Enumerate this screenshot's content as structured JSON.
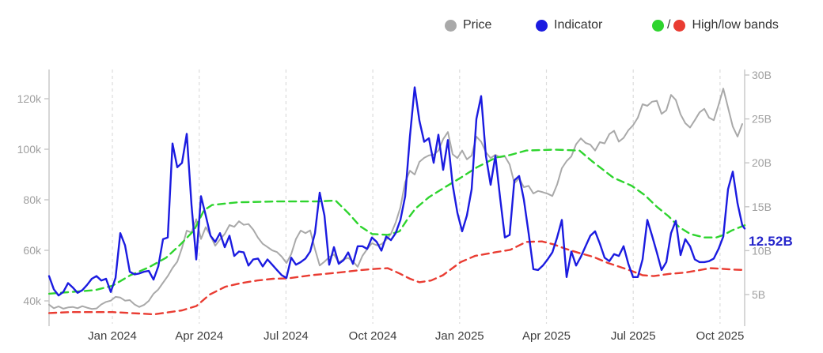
{
  "legend": {
    "price_label": "Price",
    "indicator_label": "Indicator",
    "bands_label": "High/low bands",
    "bands_separator": "/"
  },
  "colors": {
    "price": "#a9a9a9",
    "indicator": "#1b1be0",
    "band_high": "#2ed42e",
    "band_low": "#e93c32",
    "annotation": "#2626cb",
    "grid": "#dcdcdc",
    "axis_line": "#c6c6c6",
    "y_tick_label": "#9f9f9f",
    "x_tick_label": "#3d3d3d"
  },
  "annotation": {
    "text": "12.52B",
    "value": 12.52,
    "x": 2025.821
  },
  "chart_data": {
    "type": "line",
    "title": "",
    "x_axis": {
      "ticks": [
        2024.0,
        2024.25,
        2024.5,
        2024.75,
        2025.0,
        2025.25,
        2025.5,
        2025.75
      ],
      "labels": [
        "Jan 2024",
        "Apr 2024",
        "Jul 2024",
        "Oct 2024",
        "Jan 2025",
        "Apr 2025",
        "Jul 2025",
        "Oct 2025"
      ],
      "range": [
        2023.818,
        2025.825
      ],
      "grid": true
    },
    "y_left": {
      "ticks": [
        40,
        60,
        80,
        100,
        120
      ],
      "labels": [
        "40k",
        "60k",
        "80k",
        "100k",
        "120k"
      ],
      "unit": "thousand (price)",
      "range": [
        31.6,
        131.6
      ]
    },
    "y_right": {
      "ticks": [
        5,
        10,
        15,
        20,
        25,
        30
      ],
      "labels": [
        "5B",
        "10B",
        "15B",
        "20B",
        "25B",
        "30B"
      ],
      "unit": "billions",
      "range": [
        1.85,
        30.6
      ]
    },
    "series": [
      {
        "name": "Price",
        "axis": "left",
        "style": "solid",
        "color_key": "price",
        "x_start": 2023.8177,
        "x_step": 0.013674,
        "values": [
          38.5,
          37.1,
          37.8,
          36.9,
          37.4,
          37.6,
          37.1,
          37.9,
          37.3,
          36.8,
          37.0,
          38.6,
          39.6,
          40.1,
          41.6,
          41.3,
          40.1,
          40.3,
          38.6,
          37.6,
          38.4,
          40.0,
          42.8,
          44.5,
          47.2,
          49.8,
          53.0,
          55.5,
          61.0,
          67.8,
          67.0,
          72.3,
          64.5,
          69.2,
          65.8,
          61.8,
          64.3,
          66.5,
          70.0,
          69.3,
          71.5,
          70.1,
          70.4,
          68.2,
          65.0,
          62.6,
          61.3,
          60.0,
          59.3,
          57.5,
          55.0,
          58.5,
          64.5,
          67.8,
          66.8,
          67.9,
          60.5,
          54.0,
          55.5,
          57.3,
          58.4,
          55.2,
          56.4,
          57.0,
          55.6,
          53.5,
          57.8,
          60.5,
          62.8,
          62.0,
          62.4,
          64.2,
          66.5,
          71.0,
          77.0,
          87.0,
          91.5,
          90.0,
          95.0,
          96.6,
          97.6,
          97.8,
          99.5,
          104.0,
          106.8,
          98.0,
          96.5,
          99.5,
          96.0,
          97.5,
          105.0,
          103.0,
          98.8,
          96.5,
          97.8,
          96.8,
          97.2,
          94.0,
          86.6,
          88.5,
          85.0,
          85.5,
          82.5,
          83.5,
          83.0,
          82.4,
          81.5,
          86.0,
          92.5,
          95.3,
          97.2,
          102.0,
          104.3,
          102.5,
          101.8,
          99.5,
          102.8,
          102.3,
          106.0,
          107.3,
          103.0,
          104.5,
          107.5,
          109.5,
          112.5,
          117.8,
          117.2,
          118.8,
          119.2,
          114.0,
          115.4,
          121.5,
          119.5,
          113.8,
          110.3,
          108.6,
          111.5,
          114.6,
          116.0,
          112.5,
          111.5,
          117.5,
          124.0,
          116.5,
          109.0,
          105.0,
          110.0
        ]
      },
      {
        "name": "Indicator",
        "axis": "right",
        "style": "solid",
        "color_key": "indicator",
        "x_start": 2023.8177,
        "x_step": 0.013674,
        "last_x": 2025.8209,
        "last_value": 12.52,
        "values": [
          7.1,
          5.6,
          4.9,
          5.3,
          6.3,
          5.8,
          5.2,
          5.5,
          6.1,
          6.8,
          7.1,
          6.6,
          6.8,
          5.3,
          6.9,
          12.0,
          10.6,
          7.6,
          7.3,
          7.4,
          7.6,
          7.7,
          6.7,
          8.2,
          11.3,
          11.5,
          22.2,
          19.5,
          20.0,
          23.3,
          15.2,
          9.0,
          16.2,
          14.0,
          11.7,
          11.0,
          12.0,
          10.4,
          11.7,
          9.4,
          9.9,
          9.8,
          8.3,
          9.0,
          9.1,
          8.2,
          9.0,
          8.4,
          7.8,
          7.2,
          6.9,
          9.2,
          8.4,
          8.7,
          9.1,
          9.9,
          12.0,
          16.6,
          14.0,
          8.4,
          10.4,
          8.5,
          8.9,
          9.8,
          8.5,
          10.5,
          10.5,
          10.2,
          11.5,
          11.0,
          10.0,
          11.6,
          11.2,
          12.0,
          13.5,
          16.2,
          23.0,
          28.6,
          24.8,
          22.4,
          22.8,
          20.0,
          23.2,
          19.2,
          22.6,
          17.5,
          14.3,
          12.2,
          14.0,
          17.0,
          25.0,
          27.6,
          20.8,
          17.5,
          20.8,
          16.0,
          11.5,
          11.8,
          18.0,
          18.5,
          15.8,
          12.0,
          7.9,
          7.8,
          8.3,
          9.0,
          9.8,
          11.5,
          13.5,
          7.0,
          9.9,
          8.3,
          9.3,
          10.5,
          11.7,
          12.2,
          10.8,
          9.2,
          8.8,
          9.6,
          9.4,
          10.5,
          8.5,
          7.0,
          7.0,
          9.0,
          13.5,
          11.7,
          9.8,
          7.8,
          8.7,
          12.0,
          13.4,
          9.5,
          11.3,
          10.5,
          9.0,
          8.7,
          8.7,
          8.8,
          9.1,
          10.2,
          11.6,
          17.0,
          19.0,
          15.4,
          12.9
        ]
      },
      {
        "name": "High band",
        "axis": "right",
        "style": "dashed",
        "color_key": "band_high",
        "points": [
          [
            2023.818,
            5.1
          ],
          [
            2023.881,
            5.3
          ],
          [
            2023.95,
            5.5
          ],
          [
            2024.0,
            6.0
          ],
          [
            2024.052,
            7.2
          ],
          [
            2024.105,
            8.1
          ],
          [
            2024.155,
            9.2
          ],
          [
            2024.196,
            10.7
          ],
          [
            2024.235,
            12.3
          ],
          [
            2024.264,
            14.6
          ],
          [
            2024.287,
            15.2
          ],
          [
            2024.36,
            15.5
          ],
          [
            2024.474,
            15.6
          ],
          [
            2024.588,
            15.6
          ],
          [
            2024.643,
            15.7
          ],
          [
            2024.679,
            14.3
          ],
          [
            2024.713,
            12.8
          ],
          [
            2024.748,
            11.9
          ],
          [
            2024.793,
            11.8
          ],
          [
            2024.827,
            12.2
          ],
          [
            2024.85,
            13.6
          ],
          [
            2024.873,
            14.8
          ],
          [
            2024.912,
            16.1
          ],
          [
            2024.957,
            17.2
          ],
          [
            2025.003,
            18.3
          ],
          [
            2025.05,
            19.5
          ],
          [
            2025.105,
            20.6
          ],
          [
            2025.146,
            20.9
          ],
          [
            2025.192,
            21.4
          ],
          [
            2025.272,
            21.5
          ],
          [
            2025.345,
            21.4
          ],
          [
            2025.381,
            20.2
          ],
          [
            2025.443,
            18.3
          ],
          [
            2025.495,
            17.4
          ],
          [
            2025.534,
            16.3
          ],
          [
            2025.568,
            15.0
          ],
          [
            2025.602,
            13.9
          ],
          [
            2025.632,
            12.7
          ],
          [
            2025.664,
            11.9
          ],
          [
            2025.705,
            11.5
          ],
          [
            2025.739,
            11.5
          ],
          [
            2025.761,
            11.8
          ],
          [
            2025.784,
            12.3
          ],
          [
            2025.821,
            12.9
          ]
        ]
      },
      {
        "name": "Low band",
        "axis": "right",
        "style": "dashed",
        "color_key": "band_low",
        "points": [
          [
            2023.818,
            2.9
          ],
          [
            2023.881,
            3.0
          ],
          [
            2023.95,
            3.0
          ],
          [
            2024.0,
            3.0
          ],
          [
            2024.052,
            2.9
          ],
          [
            2024.121,
            2.75
          ],
          [
            2024.166,
            3.0
          ],
          [
            2024.201,
            3.2
          ],
          [
            2024.242,
            3.7
          ],
          [
            2024.28,
            5.0
          ],
          [
            2024.326,
            5.9
          ],
          [
            2024.371,
            6.3
          ],
          [
            2024.417,
            6.6
          ],
          [
            2024.463,
            6.8
          ],
          [
            2024.508,
            6.85
          ],
          [
            2024.572,
            7.2
          ],
          [
            2024.65,
            7.5
          ],
          [
            2024.718,
            7.8
          ],
          [
            2024.766,
            7.95
          ],
          [
            2024.793,
            8.0
          ],
          [
            2024.827,
            7.4
          ],
          [
            2024.857,
            6.8
          ],
          [
            2024.884,
            6.4
          ],
          [
            2024.918,
            6.6
          ],
          [
            2024.952,
            7.2
          ],
          [
            2025.003,
            8.7
          ],
          [
            2025.044,
            9.4
          ],
          [
            2025.101,
            9.8
          ],
          [
            2025.146,
            10.1
          ],
          [
            2025.192,
            11.0
          ],
          [
            2025.237,
            11.05
          ],
          [
            2025.272,
            10.7
          ],
          [
            2025.306,
            10.2
          ],
          [
            2025.347,
            9.7
          ],
          [
            2025.385,
            9.3
          ],
          [
            2025.427,
            8.6
          ],
          [
            2025.465,
            8.1
          ],
          [
            2025.495,
            7.7
          ],
          [
            2025.527,
            7.2
          ],
          [
            2025.559,
            7.1
          ],
          [
            2025.602,
            7.35
          ],
          [
            2025.648,
            7.5
          ],
          [
            2025.687,
            7.75
          ],
          [
            2025.721,
            8.0
          ],
          [
            2025.75,
            7.95
          ],
          [
            2025.784,
            7.85
          ],
          [
            2025.821,
            7.8
          ]
        ]
      }
    ],
    "legend_position": "top-right",
    "grid": "vertical-dashed-only"
  }
}
